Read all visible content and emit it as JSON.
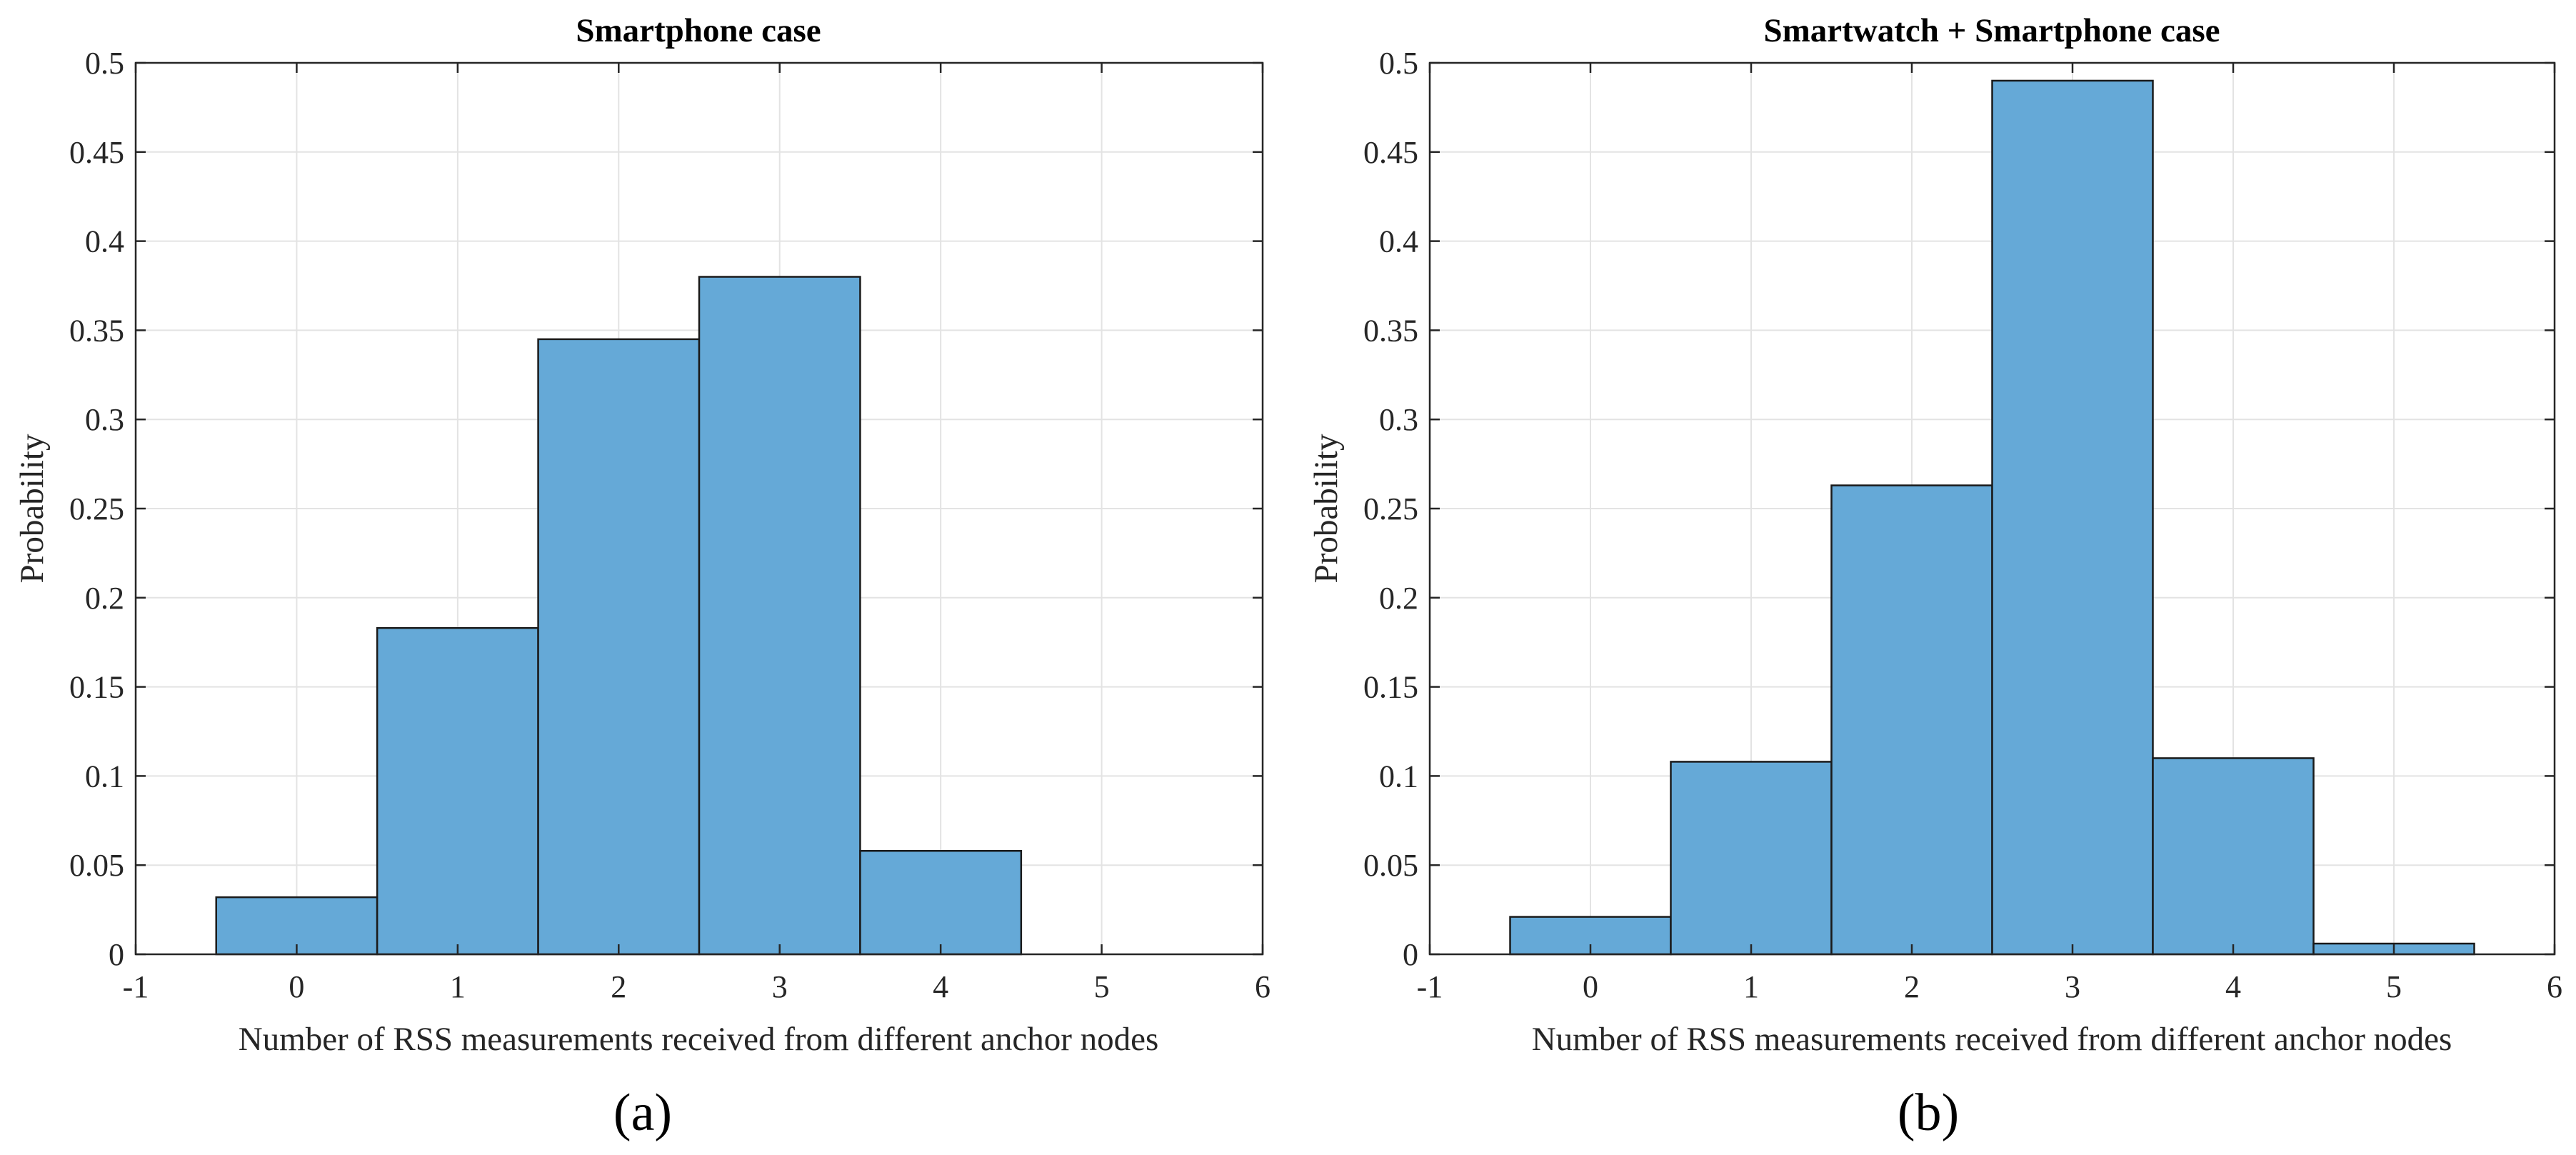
{
  "figure": {
    "panel_labels": [
      "(a)",
      "(b)"
    ]
  },
  "colors": {
    "bar_fill": "#65a9d7",
    "bar_edge": "#1a1a1a",
    "grid": "#e3e3e3"
  },
  "chart_data": [
    {
      "type": "bar",
      "title": "Smartphone case",
      "xlabel": "Number of RSS measurements received from different anchor nodes",
      "ylabel": "Probability",
      "categories": [
        0,
        1,
        2,
        3,
        4,
        5
      ],
      "values": [
        0.032,
        0.183,
        0.345,
        0.38,
        0.058,
        0.0
      ],
      "bar_width": 1,
      "xlim": [
        -1,
        6
      ],
      "ylim": [
        0,
        0.5
      ],
      "xticks": [
        "-1",
        "0",
        "1",
        "2",
        "3",
        "4",
        "5",
        "6"
      ],
      "yticks": [
        "0",
        "0.05",
        "0.1",
        "0.15",
        "0.2",
        "0.25",
        "0.3",
        "0.35",
        "0.4",
        "0.45",
        "0.5"
      ],
      "grid": true
    },
    {
      "type": "bar",
      "title": "Smartwatch + Smartphone case",
      "xlabel": "Number of RSS measurements received from different anchor nodes",
      "ylabel": "Probability",
      "categories": [
        0,
        1,
        2,
        3,
        4,
        5
      ],
      "values": [
        0.021,
        0.108,
        0.263,
        0.49,
        0.11,
        0.006
      ],
      "bar_width": 1,
      "xlim": [
        -1,
        6
      ],
      "ylim": [
        0,
        0.5
      ],
      "xticks": [
        "-1",
        "0",
        "1",
        "2",
        "3",
        "4",
        "5",
        "6"
      ],
      "yticks": [
        "0",
        "0.05",
        "0.1",
        "0.15",
        "0.2",
        "0.25",
        "0.3",
        "0.35",
        "0.4",
        "0.45",
        "0.5"
      ],
      "grid": true
    }
  ]
}
